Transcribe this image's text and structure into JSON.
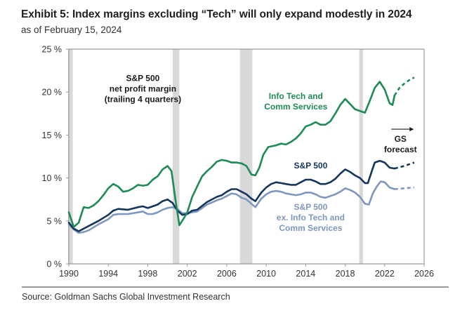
{
  "header": {
    "title": "Exhibit 5: Index margins excluding “Tech” will only expand modestly in 2024",
    "subtitle": "as of February 15, 2024"
  },
  "footer": {
    "source": "Source: Goldman Sachs Global Investment Research"
  },
  "chart_data": {
    "type": "line",
    "title": "Exhibit 5: Index margins excluding “Tech” will only expand modestly in 2024",
    "subtitle": "as of February 15, 2024",
    "xlabel": "",
    "ylabel": "",
    "xlim": [
      1990,
      2026
    ],
    "ylim": [
      0,
      25
    ],
    "x_ticks": [
      1990,
      1994,
      1998,
      2002,
      2006,
      2010,
      2014,
      2018,
      2022,
      2026
    ],
    "x_tick_labels": [
      "1990",
      "1994",
      "1998",
      "2002",
      "2006",
      "2010",
      "2014",
      "2018",
      "2022",
      "2026"
    ],
    "y_ticks": [
      0,
      5,
      10,
      15,
      20,
      25
    ],
    "y_tick_labels": [
      "0 %",
      "5 %",
      "10 %",
      "15 %",
      "20 %",
      "25 %"
    ],
    "grid": false,
    "legend": "inline-labels",
    "recession_shading": [
      {
        "start": 1990.0,
        "end": 1990.4
      },
      {
        "start": 2000.6,
        "end": 2001.2
      },
      {
        "start": 2007.4,
        "end": 2008.6
      },
      {
        "start": 2019.5,
        "end": 2019.8
      }
    ],
    "series": [
      {
        "name": "Info Tech and Comm Services",
        "color": "#1e8a55",
        "x": [
          1990.0,
          1990.5,
          1991.0,
          1991.5,
          1992.0,
          1992.5,
          1993.0,
          1993.5,
          1994.0,
          1994.5,
          1995.0,
          1995.5,
          1996.0,
          1996.5,
          1997.0,
          1997.5,
          1998.0,
          1998.5,
          1999.0,
          1999.5,
          2000.0,
          2000.4,
          2000.8,
          2001.2,
          2001.6,
          2002.0,
          2002.5,
          2003.0,
          2003.5,
          2004.0,
          2004.5,
          2005.0,
          2005.5,
          2006.0,
          2006.5,
          2007.0,
          2007.5,
          2008.0,
          2008.5,
          2008.9,
          2009.3,
          2009.7,
          2010.2,
          2011.0,
          2011.5,
          2012.0,
          2012.5,
          2013.0,
          2013.5,
          2014.0,
          2014.5,
          2015.0,
          2015.5,
          2016.0,
          2016.5,
          2017.0,
          2017.5,
          2018.0,
          2018.5,
          2019.0,
          2019.5,
          2020.0,
          2020.5,
          2021.0,
          2021.5,
          2022.0,
          2022.5,
          2022.8,
          2023.0
        ],
        "values": [
          6.0,
          4.3,
          4.8,
          6.6,
          6.5,
          6.8,
          7.3,
          8.0,
          8.8,
          9.3,
          9.0,
          8.4,
          8.5,
          8.8,
          9.2,
          9.1,
          9.2,
          9.8,
          10.2,
          11.0,
          11.4,
          10.8,
          7.5,
          4.5,
          5.2,
          6.0,
          7.8,
          9.0,
          10.2,
          10.8,
          11.3,
          11.9,
          12.1,
          12.0,
          11.8,
          11.8,
          11.7,
          11.4,
          10.4,
          10.3,
          11.2,
          12.7,
          13.6,
          13.8,
          14.0,
          13.9,
          14.2,
          14.6,
          15.2,
          16.0,
          16.2,
          16.5,
          16.2,
          16.2,
          16.6,
          17.5,
          18.5,
          19.2,
          18.6,
          18.0,
          17.8,
          17.6,
          19.0,
          20.5,
          21.2,
          20.3,
          18.7,
          18.5,
          19.6
        ]
      },
      {
        "name": "Info Tech and Comm Services (GS forecast)",
        "color": "#1e8a55",
        "dashed": true,
        "x": [
          2023.0,
          2023.5,
          2024.0,
          2024.5,
          2025.0
        ],
        "values": [
          19.6,
          20.5,
          21.0,
          21.4,
          21.7
        ]
      },
      {
        "name": "S&P 500",
        "color": "#14365c",
        "x": [
          1990.0,
          1990.5,
          1991.0,
          1991.5,
          1992.0,
          1993.0,
          1994.0,
          1994.5,
          1995.0,
          1996.0,
          1997.0,
          1997.5,
          1998.0,
          1998.5,
          1999.0,
          1999.5,
          2000.0,
          2000.5,
          2001.0,
          2001.5,
          2002.0,
          2002.5,
          2003.0,
          2004.0,
          2005.0,
          2005.5,
          2006.0,
          2006.5,
          2007.0,
          2007.5,
          2008.0,
          2008.5,
          2008.9,
          2009.5,
          2010.0,
          2010.5,
          2011.0,
          2011.5,
          2012.0,
          2012.5,
          2013.0,
          2013.5,
          2014.0,
          2014.5,
          2015.0,
          2015.5,
          2016.0,
          2016.5,
          2017.0,
          2017.5,
          2018.0,
          2018.5,
          2019.0,
          2019.5,
          2020.0,
          2020.3,
          2020.7,
          2021.0,
          2021.5,
          2022.0,
          2022.5,
          2023.0
        ],
        "values": [
          4.8,
          4.1,
          3.8,
          4.1,
          4.4,
          5.0,
          5.7,
          6.2,
          6.4,
          6.3,
          6.6,
          6.7,
          6.5,
          6.7,
          6.9,
          7.3,
          7.5,
          7.1,
          6.2,
          5.7,
          5.8,
          6.2,
          6.3,
          7.2,
          7.8,
          8.0,
          8.4,
          8.7,
          8.7,
          8.4,
          8.1,
          7.6,
          7.3,
          8.3,
          8.9,
          9.3,
          9.5,
          9.4,
          9.3,
          9.2,
          9.2,
          9.5,
          9.8,
          9.8,
          9.6,
          9.3,
          9.3,
          9.5,
          9.9,
          10.5,
          11.0,
          10.7,
          10.3,
          10.0,
          9.4,
          9.4,
          10.8,
          11.8,
          12.0,
          11.8,
          11.2,
          11.1
        ]
      },
      {
        "name": "S&P 500 (GS forecast)",
        "color": "#14365c",
        "dashed": true,
        "x": [
          2023.0,
          2024.0,
          2025.0
        ],
        "values": [
          11.1,
          11.4,
          11.8
        ]
      },
      {
        "name": "S&P 500 ex. Info Tech and Comm Services",
        "color": "#7e97bf",
        "x": [
          1990.0,
          1990.5,
          1991.0,
          1991.5,
          1992.0,
          1993.0,
          1994.0,
          1994.5,
          1995.0,
          1996.0,
          1997.0,
          1997.5,
          1998.0,
          1998.5,
          1999.0,
          1999.5,
          2000.0,
          2000.5,
          2001.0,
          2001.5,
          2002.0,
          2002.5,
          2003.0,
          2004.0,
          2005.0,
          2005.5,
          2006.0,
          2006.5,
          2007.0,
          2007.5,
          2008.0,
          2008.5,
          2008.9,
          2009.5,
          2010.0,
          2010.5,
          2011.0,
          2011.5,
          2012.0,
          2012.5,
          2013.0,
          2013.5,
          2014.0,
          2014.5,
          2015.0,
          2015.5,
          2016.0,
          2016.5,
          2017.0,
          2017.5,
          2018.0,
          2018.5,
          2019.0,
          2019.5,
          2020.0,
          2020.4,
          2020.8,
          2021.2,
          2021.6,
          2022.0,
          2022.5,
          2023.0
        ],
        "values": [
          4.6,
          4.0,
          3.6,
          3.7,
          3.9,
          4.6,
          5.2,
          5.7,
          5.8,
          5.8,
          6.0,
          6.1,
          5.8,
          5.8,
          6.0,
          6.3,
          6.5,
          6.6,
          6.4,
          5.9,
          5.9,
          6.0,
          6.1,
          6.9,
          7.4,
          7.6,
          7.9,
          8.2,
          8.1,
          7.7,
          7.5,
          7.0,
          6.6,
          7.6,
          8.1,
          8.4,
          8.5,
          8.4,
          8.2,
          8.1,
          8.0,
          8.1,
          8.3,
          8.3,
          8.1,
          7.8,
          7.7,
          7.9,
          8.1,
          8.4,
          8.8,
          8.6,
          8.3,
          7.8,
          7.0,
          6.9,
          8.2,
          9.0,
          9.6,
          9.5,
          8.9,
          8.7
        ]
      },
      {
        "name": "S&P 500 ex. Info Tech and Comm Services (GS forecast)",
        "color": "#7e97bf",
        "dashed": true,
        "x": [
          2023.0,
          2024.0,
          2025.0
        ],
        "values": [
          8.7,
          8.8,
          8.9
        ]
      }
    ],
    "annotations": [
      {
        "id": "sp500-margin-note",
        "lines": [
          "S&P 500",
          "net profit margin",
          "(trailing 4 quarters)"
        ],
        "color": "#1a1a1a",
        "at": [
          1997.5,
          21.3
        ]
      },
      {
        "id": "info-tech-label",
        "lines": [
          "Info Tech and",
          "Comm Services"
        ],
        "color": "#1e8a55",
        "at": [
          2013.0,
          19.2
        ]
      },
      {
        "id": "sp500-label",
        "lines": [
          "S&P 500"
        ],
        "color": "#14365c",
        "at": [
          2014.5,
          11.1
        ]
      },
      {
        "id": "sp500-ex-label",
        "lines": [
          "S&P 500",
          "ex. Info Tech and",
          "Comm Services"
        ],
        "color": "#7e97bf",
        "at": [
          2014.5,
          6.3
        ]
      },
      {
        "id": "gs-forecast-label",
        "lines": [
          "GS",
          "forecast"
        ],
        "color": "#1a1a1a",
        "at": [
          2023.6,
          14.7
        ],
        "arrow": true
      }
    ]
  }
}
